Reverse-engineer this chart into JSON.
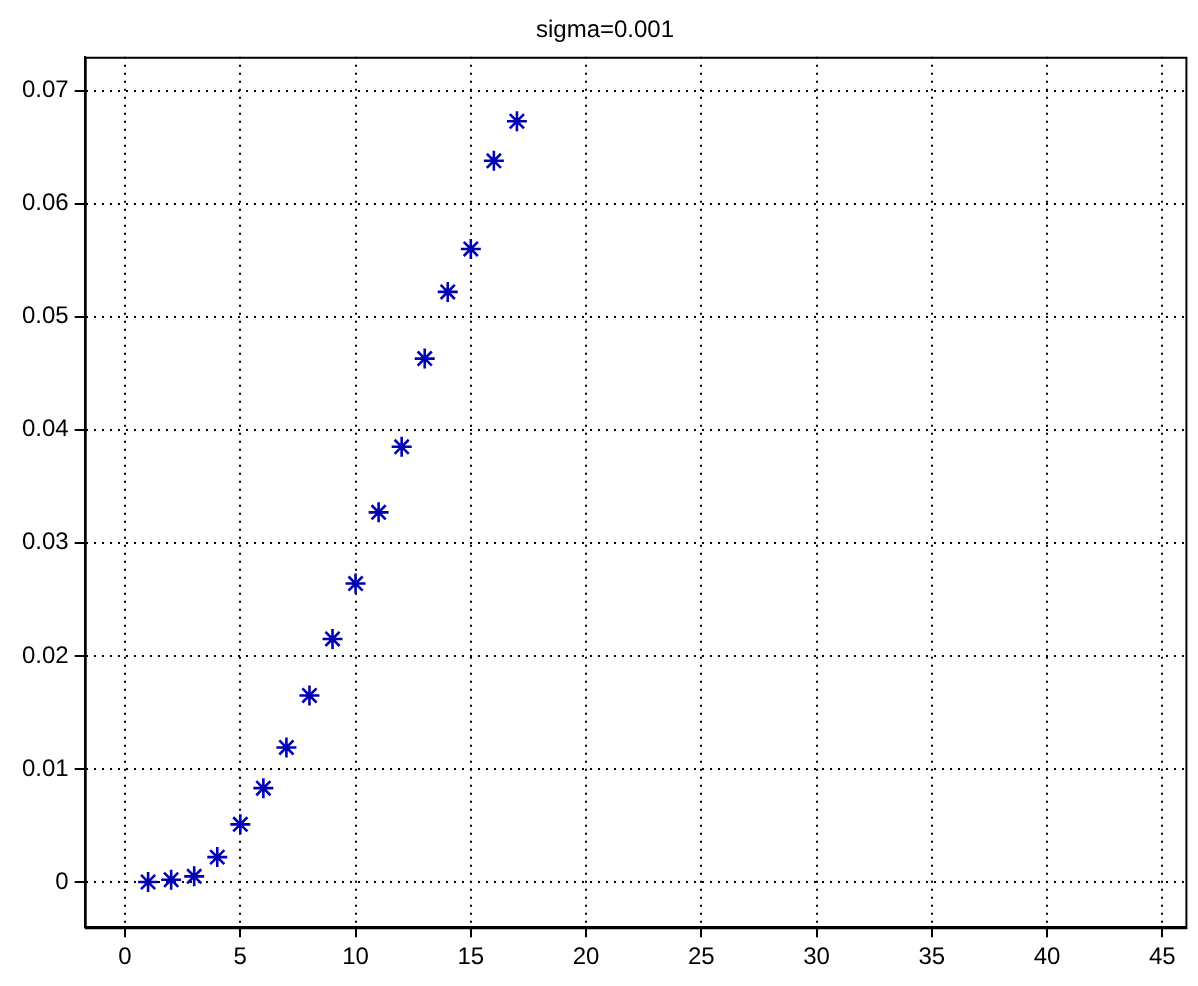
{
  "chart_data": {
    "type": "scatter",
    "title": "sigma=0.001",
    "x": [
      1,
      2,
      3,
      4,
      5,
      6,
      7,
      8,
      9,
      10,
      11,
      12,
      13,
      14,
      15,
      16,
      17
    ],
    "series": [
      {
        "color": "#0000b4",
        "values": [
          0,
          0.0002,
          0.0005,
          0.0022,
          0.0051,
          0.0083,
          0.0119,
          0.0165,
          0.0215,
          0.0264,
          0.0327,
          0.0385,
          0.0463,
          0.0522,
          0.056,
          0.0638,
          0.0673
        ]
      }
    ],
    "xlim": [
      -1.75,
      46
    ],
    "xticks": [
      0,
      5,
      10,
      15,
      20,
      25,
      30,
      35,
      40,
      45
    ],
    "ylim": [
      -0.004,
      0.073
    ],
    "yticks": [
      0,
      0.01,
      0.02,
      0.03,
      0.04,
      0.05,
      0.06,
      0.07
    ],
    "grid": true,
    "marker": "cross",
    "legend": false
  }
}
